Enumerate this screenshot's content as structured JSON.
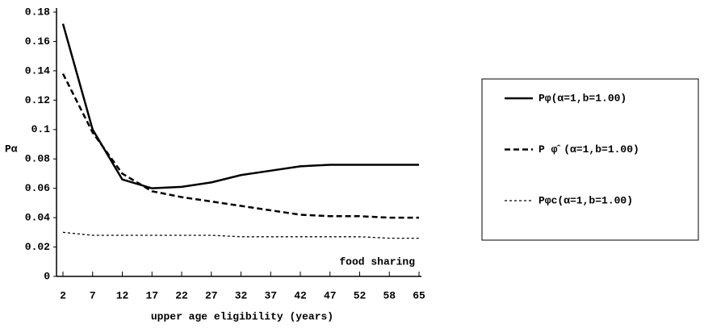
{
  "chart_data": {
    "type": "line",
    "y_label": "Pα",
    "x_label": "upper age eligibility (years)",
    "annotation": "food sharing",
    "categories": [
      "2",
      "7",
      "12",
      "17",
      "22",
      "27",
      "32",
      "37",
      "42",
      "47",
      "52",
      "58",
      "65"
    ],
    "series": [
      {
        "name": "Pφ(α=1,b=1.00)",
        "color": "#000000",
        "style": "solid",
        "values": [
          0.172,
          0.1,
          0.066,
          0.06,
          0.061,
          0.064,
          0.069,
          0.072,
          0.075,
          0.076,
          0.076,
          0.076,
          0.076
        ]
      },
      {
        "name": "P φ̂ (α=1,b=1.00)",
        "color": "#000000",
        "style": "dashed",
        "values": [
          0.138,
          0.098,
          0.07,
          0.058,
          0.054,
          0.051,
          0.048,
          0.045,
          0.042,
          0.041,
          0.041,
          0.04,
          0.04
        ]
      },
      {
        "name": "Pφc(α=1,b=1.00)",
        "color": "#000000",
        "style": "dotted",
        "values": [
          0.03,
          0.028,
          0.028,
          0.028,
          0.028,
          0.028,
          0.027,
          0.027,
          0.027,
          0.027,
          0.027,
          0.026,
          0.026
        ]
      }
    ],
    "ylim": [
      0,
      0.18
    ],
    "yticks": [
      0,
      0.02,
      0.04,
      0.06,
      0.08,
      0.1,
      0.12,
      0.14,
      0.16,
      0.18
    ],
    "grid": false
  }
}
